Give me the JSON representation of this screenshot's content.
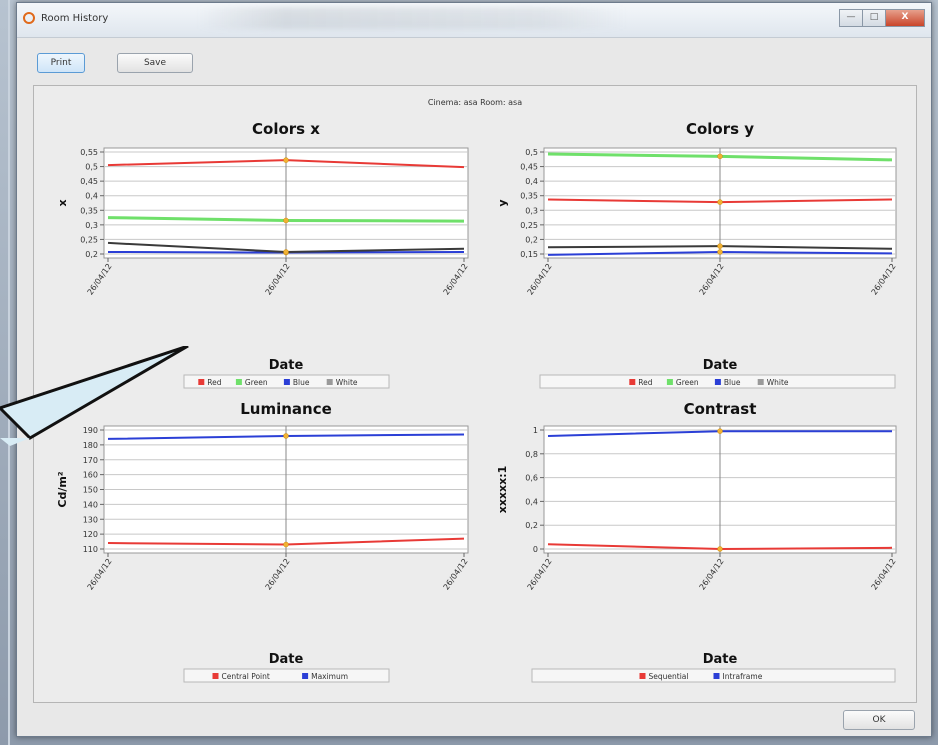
{
  "window": {
    "title": "Room History",
    "min_label": "—",
    "max_label": "□",
    "close_label": "X"
  },
  "toolbar": {
    "print_label": "Print",
    "save_label": "Save"
  },
  "footer": {
    "ok_label": "OK"
  },
  "report": {
    "subtitle": "Cinema: asa Room: asa"
  },
  "chart_data": [
    {
      "type": "line",
      "title": "Colors x",
      "xlabel": "Date",
      "ylabel": "x",
      "x": [
        "26/04/12",
        "26/04/12",
        "26/04/12"
      ],
      "yticks": [
        "0,55",
        "0,5",
        "0,45",
        "0,4",
        "0,35",
        "0,3",
        "0,25",
        "0,2"
      ],
      "ylim": [
        0.2,
        0.55
      ],
      "series": [
        {
          "name": "Red",
          "color": "#e83a36",
          "values": [
            0.505,
            0.522,
            0.498
          ]
        },
        {
          "name": "Green",
          "color": "#6fe06a",
          "values": [
            0.325,
            0.315,
            0.313
          ]
        },
        {
          "name": "Blue",
          "color": "#2b3fd6",
          "values": [
            0.207,
            0.205,
            0.207
          ]
        },
        {
          "name": "White",
          "color": "#3a3a3a",
          "values": [
            0.238,
            0.207,
            0.218
          ]
        }
      ],
      "legend_position": "bottom"
    },
    {
      "type": "line",
      "title": "Colors y",
      "xlabel": "Date",
      "ylabel": "y",
      "x": [
        "26/04/12",
        "26/04/12",
        "26/04/12"
      ],
      "yticks": [
        "0,5",
        "0,45",
        "0,4",
        "0,35",
        "0,3",
        "0,25",
        "0,2",
        "0,15"
      ],
      "ylim": [
        0.15,
        0.5
      ],
      "series": [
        {
          "name": "Red",
          "color": "#e83a36",
          "values": [
            0.337,
            0.328,
            0.337
          ]
        },
        {
          "name": "Green",
          "color": "#6fe06a",
          "values": [
            0.493,
            0.485,
            0.473
          ]
        },
        {
          "name": "Blue",
          "color": "#2b3fd6",
          "values": [
            0.147,
            0.157,
            0.152
          ]
        },
        {
          "name": "White",
          "color": "#3a3a3a",
          "values": [
            0.173,
            0.177,
            0.168
          ]
        }
      ],
      "legend_position": "bottom"
    },
    {
      "type": "line",
      "title": "Luminance",
      "xlabel": "Date",
      "ylabel": "Cd/m²",
      "x": [
        "26/04/12",
        "26/04/12",
        "26/04/12"
      ],
      "yticks": [
        "190",
        "180",
        "170",
        "160",
        "150",
        "140",
        "130",
        "120",
        "110"
      ],
      "ylim": [
        110,
        190
      ],
      "series": [
        {
          "name": "Central Point",
          "color": "#e83a36",
          "values": [
            114,
            113,
            117
          ]
        },
        {
          "name": "Maximum",
          "color": "#2b3fd6",
          "values": [
            184,
            186,
            187
          ]
        }
      ],
      "legend_position": "bottom"
    },
    {
      "type": "line",
      "title": "Contrast",
      "xlabel": "Date",
      "ylabel": "xxxxx:1",
      "x": [
        "26/04/12",
        "26/04/12",
        "26/04/12"
      ],
      "yticks": [
        "1",
        "0,8",
        "0,6",
        "0,4",
        "0,2",
        "0"
      ],
      "ylim": [
        0,
        1
      ],
      "series": [
        {
          "name": "Sequential",
          "color": "#e83a36",
          "values": [
            0.04,
            0.0,
            0.01
          ]
        },
        {
          "name": "Intraframe",
          "color": "#2b3fd6",
          "values": [
            0.95,
            0.99,
            0.99
          ]
        }
      ],
      "legend_position": "bottom"
    }
  ]
}
